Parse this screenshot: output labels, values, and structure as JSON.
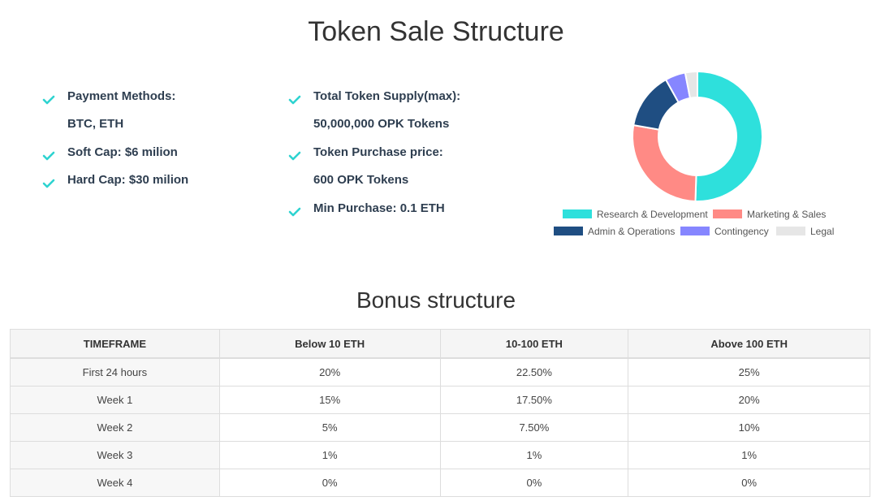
{
  "page": {
    "title": "Token Sale Structure",
    "bonus_title": "Bonus structure"
  },
  "features_left": [
    {
      "text": "Payment Methods:",
      "check": true
    },
    {
      "text": "BTC, ETH",
      "check": false
    },
    {
      "text": "Soft Cap: $6 milion",
      "check": true
    },
    {
      "text": "Hard Cap: $30 milion",
      "check": true
    }
  ],
  "features_mid": [
    {
      "text": "Total Token Supply(max):",
      "check": true
    },
    {
      "text": "50,000,000 OPK Tokens",
      "check": false
    },
    {
      "text": "Token Purchase price:",
      "check": true
    },
    {
      "text": "600 OPK Tokens",
      "check": false
    },
    {
      "text": "Min Purchase: 0.1 ETH",
      "check": true
    }
  ],
  "colors": {
    "check": "#2ed3d0",
    "feature_text": "#2e3e50"
  },
  "chart_data": {
    "type": "pie",
    "variant": "doughnut",
    "legend_position": "bottom",
    "labels": [
      "Research & Development",
      "Marketing & Sales",
      "Admin & Operations",
      "Contingency",
      "Legal"
    ],
    "values": [
      50,
      27,
      14,
      5,
      3
    ],
    "colors": [
      "#2ee0dc",
      "#ff8a85",
      "#1f4e82",
      "#8686ff",
      "#e6e6e6"
    ]
  },
  "bonus_table": {
    "headers": [
      "TIMEFRAME",
      "Below 10 ETH",
      "10-100 ETH",
      "Above 100 ETH"
    ],
    "rows": [
      [
        "First 24 hours",
        "20%",
        "22.50%",
        "25%"
      ],
      [
        "Week 1",
        "15%",
        "17.50%",
        "20%"
      ],
      [
        "Week 2",
        "5%",
        "7.50%",
        "10%"
      ],
      [
        "Week 3",
        "1%",
        "1%",
        "1%"
      ],
      [
        "Week 4",
        "0%",
        "0%",
        "0%"
      ]
    ]
  }
}
